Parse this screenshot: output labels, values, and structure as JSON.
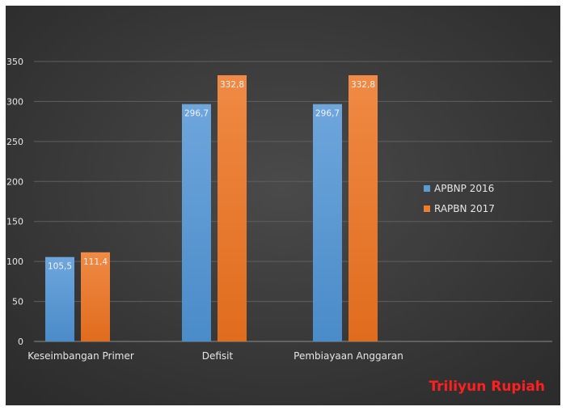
{
  "colors": {
    "series1": "#5b9bd5",
    "series2": "#ed7d31",
    "note": "#ff1f1f",
    "axis_text": "#e6e6e6",
    "grid": "#5f5f5f"
  },
  "note_text": "Triliyun Rupiah",
  "chart_data": {
    "type": "bar",
    "categories": [
      "Keseimbangan Primer",
      "Defisit",
      "Pembiayaan Anggaran"
    ],
    "series": [
      {
        "name": "APBNP 2016",
        "values": [
          105.5,
          296.7,
          296.7
        ],
        "labels": [
          "105,5",
          "296,7",
          "296,7"
        ]
      },
      {
        "name": "RAPBN 2017",
        "values": [
          111.4,
          332.8,
          332.8
        ],
        "labels": [
          "111,4",
          "332,8",
          "332,8"
        ]
      }
    ],
    "ylim": [
      0,
      350
    ],
    "yticks": [
      0,
      50,
      100,
      150,
      200,
      250,
      300,
      350
    ],
    "grid": true,
    "legend_position": "right",
    "title": "",
    "xlabel": "",
    "ylabel": ""
  }
}
